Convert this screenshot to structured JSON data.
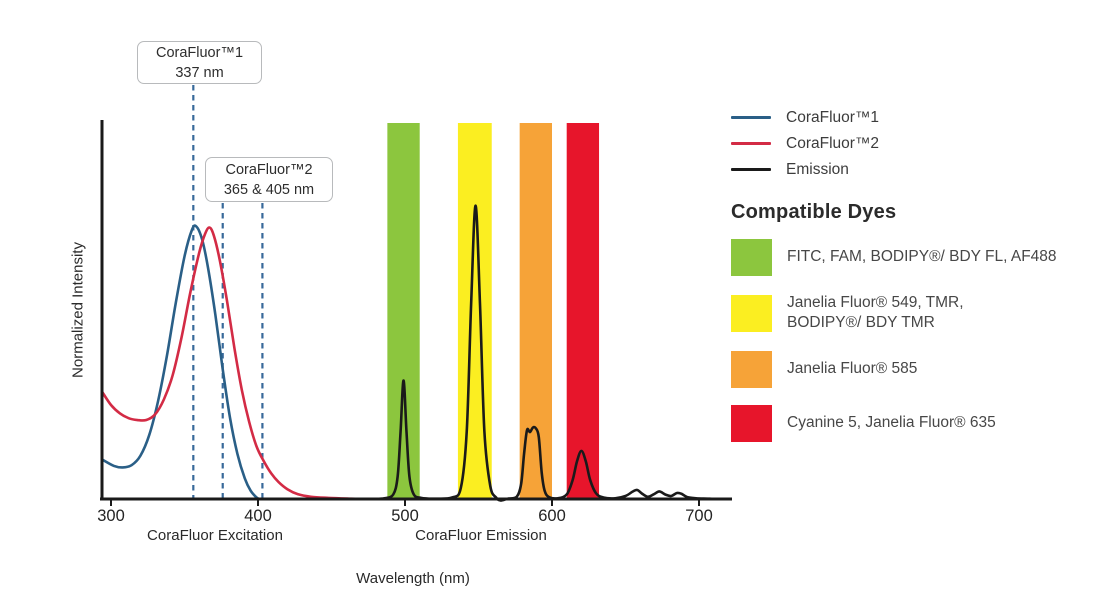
{
  "chart_data": {
    "type": "line",
    "title": "",
    "xlabel": "Wavelength (nm)",
    "ylabel": "Normalized Intensity",
    "x_ticks": [
      300,
      400,
      500,
      600,
      700
    ],
    "x_range_nm": [
      294,
      721
    ],
    "y_range": [
      0,
      1
    ],
    "grid": false,
    "axis_color": "#1a1a1a",
    "marker_color": "#38699a",
    "axis_group_labels": [
      {
        "label": "CoraFluor Excitation"
      },
      {
        "label": "CoraFluor Emission"
      }
    ],
    "callouts": [
      {
        "title": "CoraFluor™1",
        "subtitle": "337 nm"
      },
      {
        "title": "CoraFluor™2",
        "subtitle": "365 & 405 nm"
      }
    ],
    "dashed_markers": [
      {
        "nm": 356,
        "callout": 0
      },
      {
        "nm": 376,
        "callout": 1
      },
      {
        "nm": 403,
        "callout": 1
      }
    ],
    "filter_bands": [
      {
        "id": "green",
        "nm_min": 488,
        "nm_max": 510,
        "top": 1.0,
        "color": "#8CC63E"
      },
      {
        "id": "yellow",
        "nm_min": 536,
        "nm_max": 559,
        "top": 1.0,
        "color": "#FBEE21"
      },
      {
        "id": "orange",
        "nm_min": 578,
        "nm_max": 600,
        "top": 1.0,
        "color": "#F6A338"
      },
      {
        "id": "red",
        "nm_min": 610,
        "nm_max": 632,
        "top": 1.0,
        "color": "#E7152B"
      }
    ],
    "series": [
      {
        "name": "CoraFluor™1",
        "color": "#2A5F87",
        "width": 2.6,
        "points": [
          [
            294,
            0.105
          ],
          [
            302,
            0.088
          ],
          [
            308,
            0.084
          ],
          [
            314,
            0.09
          ],
          [
            320,
            0.115
          ],
          [
            326,
            0.17
          ],
          [
            332,
            0.26
          ],
          [
            338,
            0.38
          ],
          [
            344,
            0.52
          ],
          [
            350,
            0.645
          ],
          [
            355,
            0.715
          ],
          [
            358,
            0.725
          ],
          [
            362,
            0.69
          ],
          [
            366,
            0.615
          ],
          [
            371,
            0.49
          ],
          [
            376,
            0.345
          ],
          [
            381,
            0.215
          ],
          [
            386,
            0.12
          ],
          [
            391,
            0.055
          ],
          [
            395,
            0.022
          ],
          [
            399,
            0.004
          ],
          [
            401,
            0
          ]
        ]
      },
      {
        "name": "CoraFluor™2",
        "color": "#D32B45",
        "width": 2.6,
        "points": [
          [
            294,
            0.285
          ],
          [
            300,
            0.25
          ],
          [
            306,
            0.228
          ],
          [
            312,
            0.215
          ],
          [
            318,
            0.21
          ],
          [
            324,
            0.21
          ],
          [
            330,
            0.225
          ],
          [
            336,
            0.265
          ],
          [
            342,
            0.33
          ],
          [
            348,
            0.43
          ],
          [
            354,
            0.55
          ],
          [
            360,
            0.655
          ],
          [
            364,
            0.705
          ],
          [
            367,
            0.722
          ],
          [
            370,
            0.7
          ],
          [
            374,
            0.635
          ],
          [
            379,
            0.525
          ],
          [
            384,
            0.4
          ],
          [
            389,
            0.29
          ],
          [
            394,
            0.205
          ],
          [
            399,
            0.14
          ],
          [
            404,
            0.1
          ],
          [
            409,
            0.068
          ],
          [
            414,
            0.045
          ],
          [
            420,
            0.026
          ],
          [
            427,
            0.013
          ],
          [
            436,
            0.006
          ],
          [
            448,
            0.003
          ],
          [
            462,
            0.001
          ],
          [
            472,
            0
          ]
        ]
      },
      {
        "name": "Emission",
        "color": "#1A1A1A",
        "width": 2.6,
        "points": [
          [
            478,
            0
          ],
          [
            486,
            0.002
          ],
          [
            492,
            0.012
          ],
          [
            495,
            0.06
          ],
          [
            497,
            0.18
          ],
          [
            499,
            0.315
          ],
          [
            501,
            0.18
          ],
          [
            503,
            0.06
          ],
          [
            506,
            0.012
          ],
          [
            511,
            0.003
          ],
          [
            520,
            0.001
          ],
          [
            532,
            0.004
          ],
          [
            538,
            0.03
          ],
          [
            542,
            0.18
          ],
          [
            545,
            0.52
          ],
          [
            548,
            0.78
          ],
          [
            551,
            0.52
          ],
          [
            554,
            0.18
          ],
          [
            558,
            0.035
          ],
          [
            562,
            0.004
          ],
          [
            565,
            -0.004
          ],
          [
            570,
            0.001
          ],
          [
            576,
            0.006
          ],
          [
            579,
            0.04
          ],
          [
            581,
            0.12
          ],
          [
            583,
            0.183
          ],
          [
            585,
            0.178
          ],
          [
            587,
            0.19
          ],
          [
            589,
            0.188
          ],
          [
            591,
            0.165
          ],
          [
            593,
            0.07
          ],
          [
            595,
            0.022
          ],
          [
            598,
            0.005
          ],
          [
            604,
            0.002
          ],
          [
            610,
            0.012
          ],
          [
            614,
            0.05
          ],
          [
            617,
            0.1
          ],
          [
            620,
            0.128
          ],
          [
            623,
            0.1
          ],
          [
            626,
            0.05
          ],
          [
            630,
            0.015
          ],
          [
            635,
            0.004
          ],
          [
            643,
            0.002
          ],
          [
            650,
            0.008
          ],
          [
            655,
            0.02
          ],
          [
            658,
            0.024
          ],
          [
            661,
            0.015
          ],
          [
            665,
            0.006
          ],
          [
            669,
            0.012
          ],
          [
            673,
            0.02
          ],
          [
            677,
            0.012
          ],
          [
            681,
            0.008
          ],
          [
            685,
            0.016
          ],
          [
            688,
            0.014
          ],
          [
            692,
            0.005
          ],
          [
            698,
            0.002
          ],
          [
            706,
            0.001
          ],
          [
            712,
            0
          ]
        ]
      }
    ]
  },
  "legend": {
    "items": [
      {
        "label": "CoraFluor™1",
        "color": "#2A5F87"
      },
      {
        "label": "CoraFluor™2",
        "color": "#D32B45"
      },
      {
        "label": "Emission",
        "color": "#1A1A1A"
      }
    ]
  },
  "dye_panel": {
    "heading": "Compatible Dyes",
    "items": [
      {
        "color": "#8CC63E",
        "lines": [
          "FITC, FAM, BODIPY®/ BDY FL, AF488"
        ]
      },
      {
        "color": "#FBEE21",
        "lines": [
          "Janelia Fluor® 549, TMR,",
          "BODIPY®/ BDY TMR"
        ]
      },
      {
        "color": "#F6A338",
        "lines": [
          "Janelia Fluor® 585"
        ]
      },
      {
        "color": "#E7152B",
        "lines": [
          "Cyanine 5, Janelia Fluor® 635"
        ]
      }
    ]
  }
}
